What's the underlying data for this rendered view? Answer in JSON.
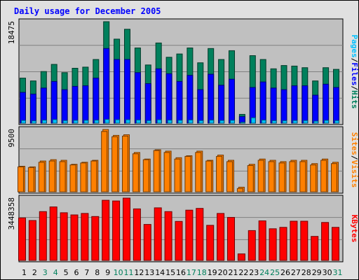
{
  "chart_data": {
    "type": "bar",
    "title": "Daily usage for December 2005",
    "colors": {
      "background": "#e0e0e0",
      "plot_bg": "#c0c0c0",
      "title": "#0000ff",
      "hits": "#00805c",
      "files": "#0000ff",
      "pages": "#00c0ff",
      "visits": "#ff8000",
      "sites": "#ff8000",
      "kbytes": "#ff0000",
      "weekend_label": "#00805c",
      "weekday_label": "#000000"
    },
    "days": [
      "1",
      "2",
      "3",
      "4",
      "5",
      "6",
      "7",
      "8",
      "9",
      "10",
      "11",
      "12",
      "13",
      "14",
      "15",
      "16",
      "17",
      "18",
      "19",
      "20",
      "21",
      "22",
      "23",
      "24",
      "25",
      "26",
      "27",
      "28",
      "29",
      "30",
      "31"
    ],
    "weekend_days": [
      "3",
      "4",
      "10",
      "11",
      "17",
      "18",
      "24",
      "25",
      "31"
    ],
    "panels": [
      {
        "name": "hits-files-pages",
        "ymax_label": "18475",
        "ymax": 18475,
        "axis_labels": [
          "Pages",
          "Files",
          "Hits"
        ],
        "axis_separator": "/",
        "series": [
          {
            "name": "Hits",
            "values": [
              8200,
              7700,
              9400,
              10700,
              9200,
              10000,
              10200,
              11600,
              18475,
              15300,
              17100,
              13700,
              10600,
              14600,
              12000,
              12600,
              13700,
              11000,
              13600,
              11600,
              13200,
              1600,
              12300,
              11600,
              9900,
              10500,
              10400,
              10100,
              7700,
              10100,
              9800
            ]
          },
          {
            "name": "Files",
            "values": [
              5600,
              5300,
              6400,
              7600,
              6100,
              6700,
              6800,
              8200,
              13600,
              11600,
              11600,
              9200,
              7200,
              9900,
              9000,
              7600,
              8700,
              6100,
              8900,
              6900,
              8000,
              1200,
              6500,
              7500,
              6400,
              6100,
              6800,
              6800,
              5100,
              7100,
              6500
            ]
          },
          {
            "name": "Pages",
            "values": [
              500,
              420,
              550,
              660,
              480,
              520,
              540,
              560,
              700,
              640,
              640,
              580,
              480,
              620,
              560,
              540,
              580,
              480,
              560,
              500,
              520,
              180,
              1000,
              560,
              460,
              460,
              480,
              480,
              380,
              520,
              480
            ]
          }
        ]
      },
      {
        "name": "visits-sites",
        "ymax_label": "9500",
        "ymax": 9500,
        "axis_labels": [
          "Sites",
          "Visits"
        ],
        "axis_separator": "/",
        "series": [
          {
            "name": "Visits",
            "values": [
              3900,
              3800,
              4700,
              4900,
              4800,
              4200,
              4500,
              4800,
              9500,
              8600,
              8700,
              6000,
              5000,
              6400,
              6200,
              5200,
              5500,
              6200,
              4800,
              5600,
              4800,
              700,
              4200,
              5000,
              4800,
              4600,
              4800,
              4800,
              4300,
              5000,
              4500
            ]
          },
          {
            "name": "Sites",
            "values": [
              3800,
              3700,
              4500,
              4700,
              4600,
              4100,
              4400,
              4700,
              9200,
              8400,
              8500,
              5800,
              4900,
              6300,
              6000,
              5000,
              5400,
              6000,
              4700,
              5400,
              4600,
              500,
              4000,
              4800,
              4600,
              4400,
              4600,
              4600,
              4100,
              4800,
              4300
            ]
          }
        ]
      },
      {
        "name": "kbytes",
        "ymax_label": "3448358",
        "ymax": 3448358,
        "axis_labels": [
          "KBytes"
        ],
        "axis_separator": "",
        "series": [
          {
            "name": "KBytes",
            "values": [
              2350000,
              2210000,
              2700000,
              2960000,
              2640000,
              2520000,
              2600000,
              2430000,
              3330000,
              3290000,
              3448358,
              2850000,
              1990000,
              2910000,
              2700000,
              2160000,
              2780000,
              2880000,
              1940000,
              2600000,
              2380000,
              360000,
              1650000,
              2190000,
              1750000,
              1830000,
              2170000,
              2170000,
              1330000,
              2100000,
              1830000
            ]
          }
        ]
      }
    ]
  }
}
